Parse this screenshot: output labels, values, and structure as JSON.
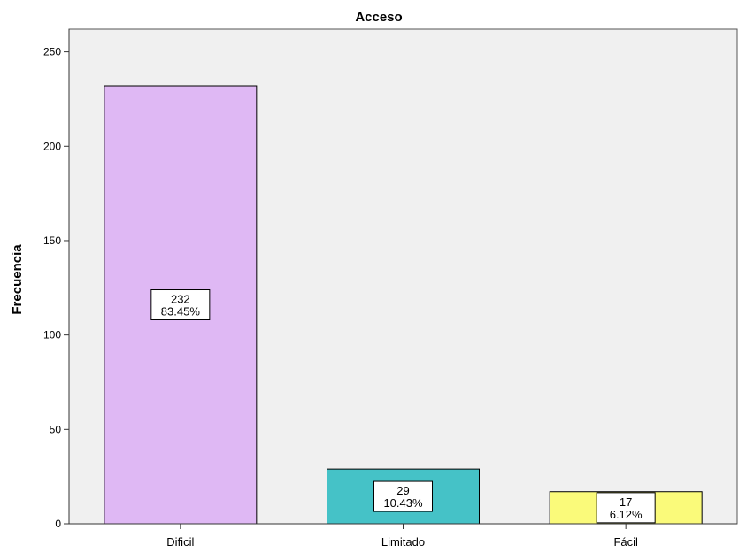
{
  "chart_data": {
    "type": "bar",
    "title": "Acceso",
    "xlabel": "",
    "ylabel": "Frecuencia",
    "categories": [
      "Dificil",
      "Limitado",
      "Fácil"
    ],
    "values": [
      232,
      29,
      17
    ],
    "data_labels": [
      {
        "count": "232",
        "percent": "83.45%"
      },
      {
        "count": "29",
        "percent": "10.43%"
      },
      {
        "count": "17",
        "percent": "6.12%"
      }
    ],
    "colors": [
      "#dfb8f4",
      "#45c2c7",
      "#fafa7a"
    ],
    "plot_background": "#f0f0f0",
    "ylim": [
      0,
      262
    ],
    "yticks": [
      0,
      50,
      100,
      150,
      200,
      250
    ],
    "grid": false,
    "legend": "none"
  }
}
